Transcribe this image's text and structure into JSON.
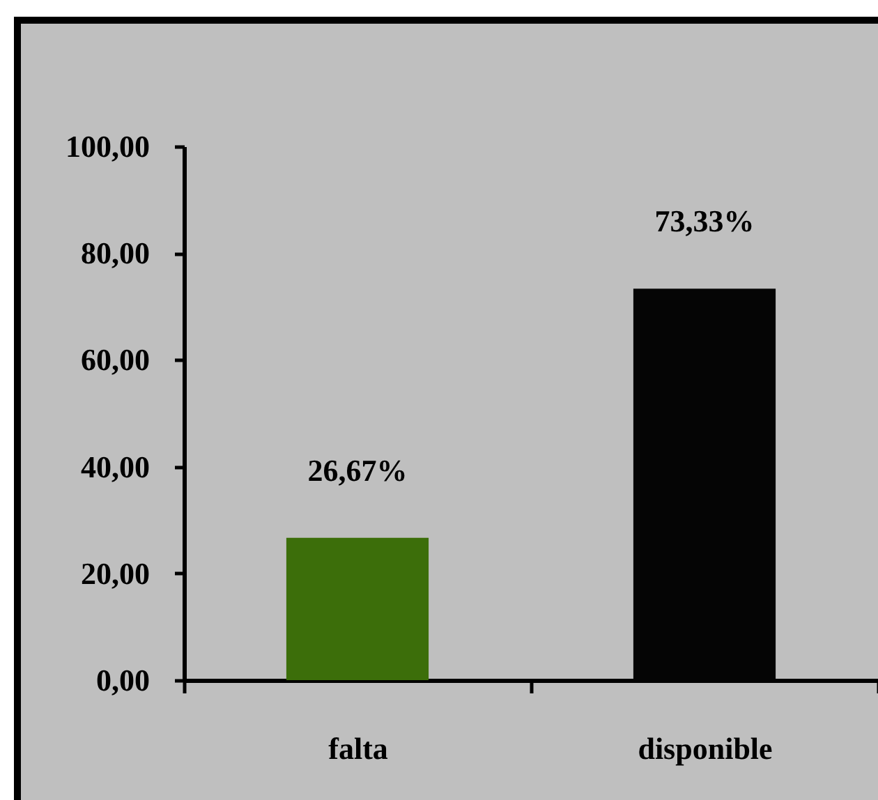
{
  "chart_data": {
    "type": "bar",
    "categories": [
      "falta",
      "disponible"
    ],
    "values": [
      26.67,
      73.33
    ],
    "colors": [
      "#3c6e0a",
      "#050505"
    ],
    "value_labels": [
      "26,67%",
      "73,33%"
    ],
    "ylim": [
      0,
      100
    ],
    "yticks": [
      {
        "value": 0,
        "label": "0,00"
      },
      {
        "value": 20,
        "label": "20,00"
      },
      {
        "value": 40,
        "label": "40,00"
      },
      {
        "value": 60,
        "label": "60,00"
      },
      {
        "value": 80,
        "label": "80,00"
      },
      {
        "value": 100,
        "label": "100,00"
      }
    ],
    "grid": false
  }
}
